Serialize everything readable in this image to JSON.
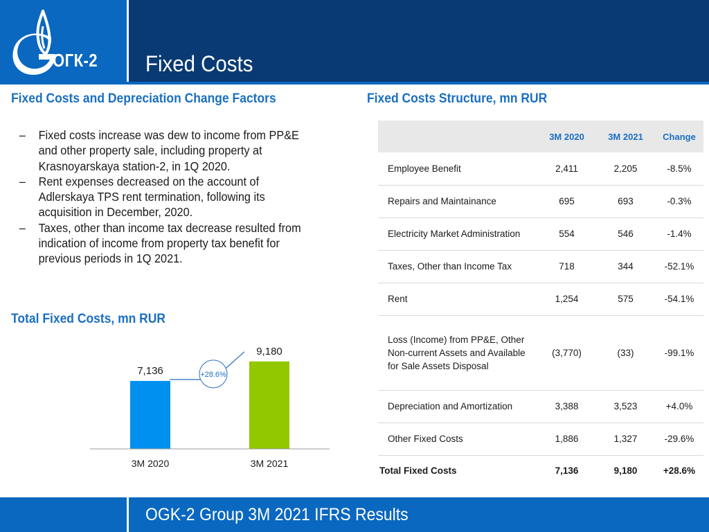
{
  "header": {
    "logo_text": "ОГК-2",
    "title": "Fixed Costs"
  },
  "left": {
    "heading": "Fixed Costs and Depreciation Change Factors",
    "bullets": [
      "Fixed costs increase was dew to income from PP&E and other property sale, including property at Krasnoyarskaya station-2, in 1Q 2020.",
      "Rent expenses decreased on the account of Adlerskaya TPS rent termination, following its acquisition in December, 2020.",
      "Taxes, other than income tax decrease resulted from indication of income from property tax benefit for previous periods in 1Q 2021."
    ],
    "chart_heading": "Total Fixed Costs, mn RUR"
  },
  "chart_data": {
    "type": "bar",
    "title": "Total Fixed Costs, mn RUR",
    "categories": [
      "3M 2020",
      "3M 2021"
    ],
    "values": [
      7136,
      9180
    ],
    "value_labels": [
      "7,136",
      "9,180"
    ],
    "colors": [
      "#0090f0",
      "#92c800"
    ],
    "annotation": "+28.6%",
    "ylim": [
      0,
      12000
    ]
  },
  "right": {
    "heading": "Fixed Costs Structure, mn RUR",
    "table": {
      "headers": [
        "",
        "3M 2020",
        "3M 2021",
        "Change"
      ],
      "rows": [
        [
          "Employee Benefit",
          "2,411",
          "2,205",
          "-8.5%"
        ],
        [
          "Repairs and Maintainance",
          "695",
          "693",
          "-0.3%"
        ],
        [
          "Electricity Market Administration",
          "554",
          "546",
          "-1.4%"
        ],
        [
          "Taxes, Other than Income Tax",
          "718",
          "344",
          "-52.1%"
        ],
        [
          "Rent",
          "1,254",
          "575",
          "-54.1%"
        ],
        [
          "Loss (Income) from PP&E, Other Non-current Assets and Available for Sale Assets Disposal",
          "(3,770)",
          "(33)",
          "-99.1%"
        ],
        [
          "Depreciation and Amortization",
          "3,388",
          "3,523",
          "+4.0%"
        ],
        [
          "Other Fixed Costs",
          "1,886",
          "1,327",
          "-29.6%"
        ]
      ],
      "total": [
        "Total Fixed Costs",
        "7,136",
        "9,180",
        "+28.6%"
      ]
    }
  },
  "footer": {
    "text": "OGK-2 Group 3M 2021 IFRS Results"
  }
}
